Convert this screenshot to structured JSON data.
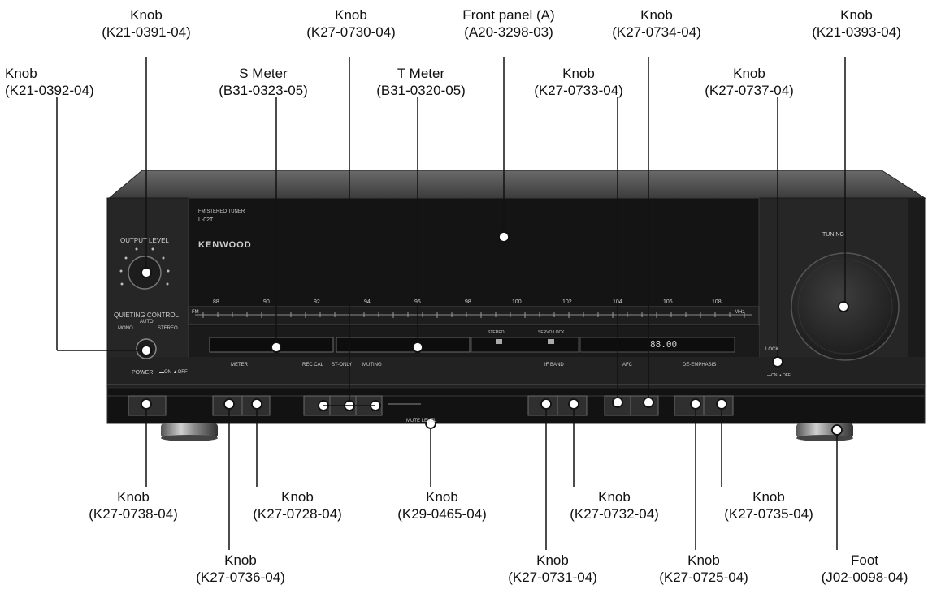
{
  "panel": {
    "model_title": "FM STEREO TUNER",
    "model_number": "L-02T",
    "brand": "KENWOOD",
    "output_level": "OUTPUT LEVEL",
    "quieting_control": "QUIETING CONTROL",
    "auto": "AUTO",
    "mono": "MONO",
    "stereo": "STEREO",
    "power": "POWER",
    "on_off": "▬ON ▲OFF",
    "meter": "METER",
    "rec_cal": "REC CAL",
    "st_only": "ST-ONLY",
    "muting": "MUTING",
    "if_band": "IF BAND",
    "afc": "AFC",
    "de_emphasis": "DE-EMPHASIS",
    "tuning": "TUNING",
    "lock": "LOCK",
    "stereo_ind": "STEREO",
    "servo_lock": "SERVO LOCK",
    "mute_level": "MUTE LEVEL",
    "fm": "FM",
    "mhz": "MHz",
    "freq_display": "88.00",
    "scale": [
      "88",
      "90",
      "92",
      "94",
      "96",
      "98",
      "100",
      "102",
      "104",
      "106",
      "108"
    ]
  },
  "callouts": {
    "k0391": {
      "name": "Knob",
      "code": "(K21-0391-04)"
    },
    "k0392": {
      "name": "Knob",
      "code": "(K21-0392-04)"
    },
    "smeter": {
      "name": "S Meter",
      "code": "(B31-0323-05)"
    },
    "k0730": {
      "name": "Knob",
      "code": "(K27-0730-04)"
    },
    "tmeter": {
      "name": "T Meter",
      "code": "(B31-0320-05)"
    },
    "panel": {
      "name": "Front panel (A)",
      "code": "(A20-3298-03)"
    },
    "k0733": {
      "name": "Knob",
      "code": "(K27-0733-04)"
    },
    "k0734": {
      "name": "Knob",
      "code": "(K27-0734-04)"
    },
    "k0737": {
      "name": "Knob",
      "code": "(K27-0737-04)"
    },
    "k0393": {
      "name": "Knob",
      "code": "(K21-0393-04)"
    },
    "k0738": {
      "name": "Knob",
      "code": "(K27-0738-04)"
    },
    "k0728": {
      "name": "Knob",
      "code": "(K27-0728-04)"
    },
    "k0465": {
      "name": "Knob",
      "code": "(K29-0465-04)"
    },
    "k0732": {
      "name": "Knob",
      "code": "(K27-0732-04)"
    },
    "k0735": {
      "name": "Knob",
      "code": "(K27-0735-04)"
    },
    "k0736": {
      "name": "Knob",
      "code": "(K27-0736-04)"
    },
    "k0731": {
      "name": "Knob",
      "code": "(K27-0731-04)"
    },
    "k0725": {
      "name": "Knob",
      "code": "(K27-0725-04)"
    },
    "foot": {
      "name": "Foot",
      "code": "(J02-0098-04)"
    }
  },
  "colors": {
    "chassis": "#262626",
    "panel_dark": "#111111",
    "line": "#111111",
    "label_text": "#cfcfcf"
  }
}
